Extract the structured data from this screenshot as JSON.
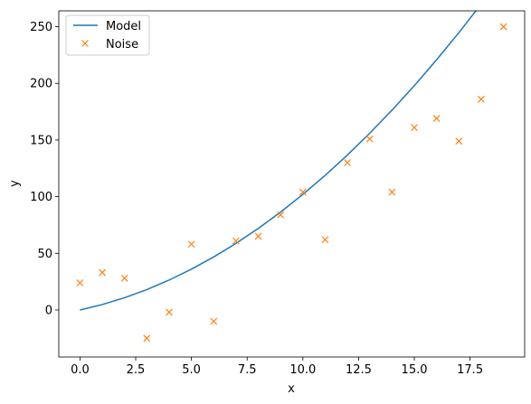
{
  "chart_data": {
    "type": "scatter",
    "xlabel": "x",
    "ylabel": "y",
    "xlim": [
      -0.95,
      19.95
    ],
    "ylim": [
      -41.5,
      264
    ],
    "x_ticks": [
      0,
      2.5,
      5,
      7.5,
      10,
      12.5,
      15,
      17.5
    ],
    "x_tick_labels": [
      "0.0",
      "2.5",
      "5.0",
      "7.5",
      "10.0",
      "12.5",
      "15.0",
      "17.5"
    ],
    "y_ticks": [
      0,
      50,
      100,
      150,
      200,
      250
    ],
    "y_tick_labels": [
      "0",
      "50",
      "100",
      "150",
      "200",
      "250"
    ],
    "grid": false,
    "legend_position": "top-left",
    "series": [
      {
        "name": "Model",
        "kind": "line",
        "color": "#1f77b4",
        "x": [
          0,
          1,
          2,
          3,
          4,
          5,
          6,
          7,
          8,
          9,
          10,
          11,
          12,
          13,
          14,
          15,
          16,
          17,
          18,
          19
        ],
        "y": [
          0,
          4.8,
          10.8,
          18,
          26.4,
          36,
          46.8,
          58.8,
          72,
          86.4,
          102,
          118.8,
          136.8,
          156,
          176.4,
          198,
          220.8,
          244.8,
          270,
          296.4
        ]
      },
      {
        "name": "Noise",
        "kind": "scatter",
        "marker": "x",
        "color": "#ff7f0e",
        "x": [
          0,
          1,
          2,
          3,
          4,
          5,
          6,
          7,
          8,
          9,
          10,
          11,
          12,
          13,
          14,
          15,
          16,
          17,
          18,
          19
        ],
        "y": [
          24,
          33,
          28,
          -25,
          -2,
          58,
          -10,
          61,
          65,
          84,
          104,
          62,
          130,
          151,
          104,
          161,
          169,
          149,
          186,
          250
        ]
      }
    ]
  }
}
